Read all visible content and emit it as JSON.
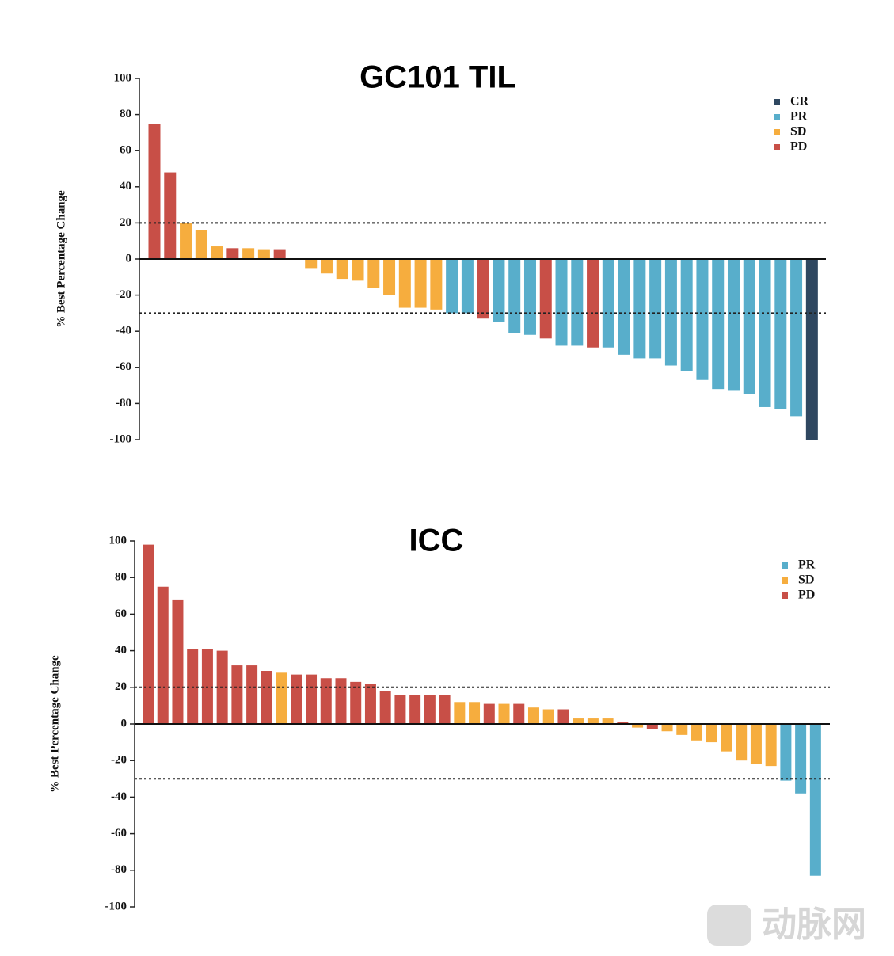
{
  "chart_data": [
    {
      "type": "bar",
      "title": "GC101 TIL",
      "y_label": "% Best Percentage Change",
      "categories": [
        null,
        null,
        null,
        null,
        null,
        null,
        null,
        null,
        null,
        null,
        null,
        null,
        null,
        null,
        null,
        null,
        null,
        null,
        null,
        null,
        null,
        null,
        null,
        null,
        null,
        null,
        null,
        null,
        null,
        null,
        null,
        null,
        null,
        null,
        null,
        null,
        null,
        null,
        null,
        null,
        null,
        null,
        null
      ],
      "series": [
        {
          "name": "CR",
          "color": "#2f4760",
          "values": [
            null,
            null,
            null,
            null,
            null,
            null,
            null,
            null,
            null,
            null,
            null,
            null,
            null,
            null,
            null,
            null,
            null,
            null,
            null,
            null,
            null,
            null,
            null,
            null,
            null,
            null,
            null,
            null,
            null,
            null,
            null,
            null,
            null,
            null,
            null,
            null,
            null,
            null,
            null,
            null,
            null,
            null,
            -100
          ]
        },
        {
          "name": "PR",
          "color": "#58aecb",
          "values": [
            null,
            null,
            null,
            null,
            null,
            null,
            null,
            null,
            null,
            null,
            null,
            null,
            null,
            null,
            null,
            null,
            null,
            null,
            null,
            -30,
            -30,
            null,
            -35,
            -41,
            -42,
            null,
            -48,
            -48,
            null,
            -49,
            -53,
            -55,
            -55,
            -59,
            -62,
            -67,
            -72,
            -73,
            -75,
            -82,
            -83,
            -87,
            null
          ]
        },
        {
          "name": "SD",
          "color": "#f6ad3e",
          "values": [
            null,
            null,
            20,
            16,
            7,
            null,
            6,
            5,
            null,
            null,
            -5,
            -8,
            -11,
            -12,
            -16,
            -20,
            -27,
            -27,
            -28,
            null,
            null,
            null,
            null,
            null,
            null,
            null,
            null,
            null,
            null,
            null,
            null,
            null,
            null,
            null,
            null,
            null,
            null,
            null,
            null,
            null,
            null,
            null,
            null
          ]
        },
        {
          "name": "PD",
          "color": "#c84f47",
          "values": [
            75,
            48,
            null,
            null,
            null,
            6,
            null,
            null,
            5,
            null,
            null,
            null,
            null,
            null,
            null,
            null,
            null,
            null,
            null,
            null,
            null,
            -33,
            null,
            null,
            null,
            -44,
            null,
            null,
            -49,
            null,
            null,
            null,
            null,
            null,
            null,
            null,
            null,
            null,
            null,
            null,
            null,
            null,
            null
          ]
        }
      ],
      "ylim": [
        -100,
        100
      ],
      "yticks": [
        -100,
        -80,
        -60,
        -40,
        -20,
        0,
        20,
        40,
        60,
        80,
        100
      ],
      "reference_lines": [
        20,
        -30
      ],
      "legend": "upper right"
    },
    {
      "type": "bar",
      "title": "ICC",
      "y_label": "% Best Percentage Change",
      "categories": [
        null,
        null,
        null,
        null,
        null,
        null,
        null,
        null,
        null,
        null,
        null,
        null,
        null,
        null,
        null,
        null,
        null,
        null,
        null,
        null,
        null,
        null,
        null,
        null,
        null,
        null,
        null,
        null,
        null,
        null,
        null,
        null,
        null,
        null,
        null,
        null,
        null,
        null,
        null,
        null,
        null,
        null,
        null,
        null,
        null,
        null
      ],
      "series": [
        {
          "name": "PR",
          "color": "#58aecb",
          "values": [
            null,
            null,
            null,
            null,
            null,
            null,
            null,
            null,
            null,
            null,
            null,
            null,
            null,
            null,
            null,
            null,
            null,
            null,
            null,
            null,
            null,
            null,
            null,
            null,
            null,
            null,
            null,
            null,
            null,
            null,
            null,
            null,
            null,
            null,
            null,
            null,
            null,
            null,
            null,
            null,
            null,
            null,
            null,
            -31,
            -38,
            -83
          ]
        },
        {
          "name": "SD",
          "color": "#f6ad3e",
          "values": [
            null,
            null,
            null,
            null,
            null,
            null,
            null,
            null,
            null,
            28,
            null,
            null,
            null,
            null,
            null,
            null,
            null,
            null,
            null,
            null,
            null,
            12,
            12,
            null,
            11,
            null,
            9,
            8,
            null,
            3,
            3,
            3,
            null,
            -2,
            null,
            -4,
            -6,
            -9,
            -10,
            -15,
            -20,
            -22,
            -23,
            null,
            null,
            null
          ]
        },
        {
          "name": "PD",
          "color": "#c84f47",
          "values": [
            98,
            75,
            68,
            41,
            41,
            40,
            32,
            32,
            29,
            null,
            27,
            27,
            25,
            25,
            23,
            22,
            18,
            16,
            16,
            16,
            16,
            null,
            null,
            11,
            null,
            11,
            null,
            null,
            8,
            null,
            null,
            null,
            1,
            null,
            -3,
            null,
            null,
            null,
            null,
            null,
            null,
            null,
            null,
            null,
            null,
            null
          ]
        }
      ],
      "ylim": [
        -100,
        100
      ],
      "yticks": [
        -100,
        -80,
        -60,
        -40,
        -20,
        0,
        20,
        40,
        60,
        80,
        100
      ],
      "reference_lines": [
        20,
        -30
      ],
      "legend": "upper right"
    }
  ],
  "watermark": "动脉网"
}
